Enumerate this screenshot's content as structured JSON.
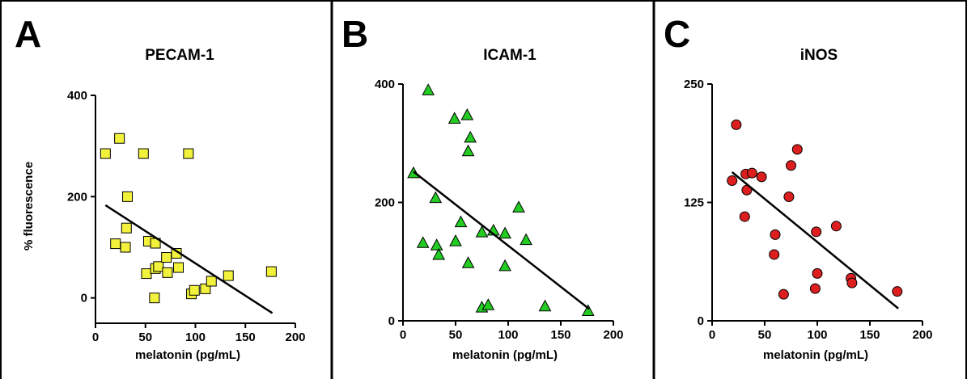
{
  "figure": {
    "panels": [
      {
        "letter": "A"
      },
      {
        "letter": "B"
      },
      {
        "letter": "C"
      }
    ]
  },
  "chart_data": [
    {
      "type": "scatter",
      "title": "PECAM-1",
      "xlabel": "melatonin (pg/mL)",
      "ylabel": "% fluorescence",
      "xlim": [
        0,
        200
      ],
      "ylim": [
        -50,
        400
      ],
      "xticks": [
        0,
        50,
        100,
        150,
        200
      ],
      "yticks": [
        0,
        200,
        400
      ],
      "marker": "square",
      "marker_color": "#f2f23c",
      "points": [
        {
          "x": 10,
          "y": 285
        },
        {
          "x": 24,
          "y": 315
        },
        {
          "x": 48,
          "y": 285
        },
        {
          "x": 93,
          "y": 285
        },
        {
          "x": 32,
          "y": 200
        },
        {
          "x": 31,
          "y": 138
        },
        {
          "x": 20,
          "y": 107
        },
        {
          "x": 30,
          "y": 100
        },
        {
          "x": 53,
          "y": 112
        },
        {
          "x": 60,
          "y": 108
        },
        {
          "x": 51,
          "y": 48
        },
        {
          "x": 60,
          "y": 58
        },
        {
          "x": 63,
          "y": 62
        },
        {
          "x": 71,
          "y": 80
        },
        {
          "x": 72,
          "y": 50
        },
        {
          "x": 81,
          "y": 88
        },
        {
          "x": 83,
          "y": 60
        },
        {
          "x": 59,
          "y": 0
        },
        {
          "x": 96,
          "y": 8
        },
        {
          "x": 99,
          "y": 15
        },
        {
          "x": 110,
          "y": 18
        },
        {
          "x": 116,
          "y": 33
        },
        {
          "x": 133,
          "y": 44
        },
        {
          "x": 176,
          "y": 52
        }
      ],
      "fit_line": {
        "x": [
          10,
          177
        ],
        "y": [
          183,
          -30
        ]
      }
    },
    {
      "type": "scatter",
      "title": "ICAM-1",
      "xlabel": "melatonin (pg/mL)",
      "ylabel": "",
      "xlim": [
        0,
        200
      ],
      "ylim": [
        0,
        400
      ],
      "xticks": [
        0,
        50,
        100,
        150,
        200
      ],
      "yticks": [
        0,
        200,
        400
      ],
      "marker": "triangle",
      "marker_color": "#22cc22",
      "points": [
        {
          "x": 10,
          "y": 250
        },
        {
          "x": 24,
          "y": 390
        },
        {
          "x": 49,
          "y": 342
        },
        {
          "x": 61,
          "y": 348
        },
        {
          "x": 64,
          "y": 310
        },
        {
          "x": 62,
          "y": 287
        },
        {
          "x": 31,
          "y": 208
        },
        {
          "x": 19,
          "y": 132
        },
        {
          "x": 32,
          "y": 128
        },
        {
          "x": 34,
          "y": 112
        },
        {
          "x": 50,
          "y": 135
        },
        {
          "x": 55,
          "y": 167
        },
        {
          "x": 62,
          "y": 98
        },
        {
          "x": 75,
          "y": 150
        },
        {
          "x": 86,
          "y": 153
        },
        {
          "x": 97,
          "y": 148
        },
        {
          "x": 97,
          "y": 93
        },
        {
          "x": 110,
          "y": 192
        },
        {
          "x": 117,
          "y": 137
        },
        {
          "x": 75,
          "y": 23
        },
        {
          "x": 81,
          "y": 27
        },
        {
          "x": 135,
          "y": 25
        },
        {
          "x": 176,
          "y": 17
        }
      ],
      "fit_line": {
        "x": [
          10,
          177
        ],
        "y": [
          252,
          20
        ]
      }
    },
    {
      "type": "scatter",
      "title": "iNOS",
      "xlabel": "melatonin (pg/mL)",
      "ylabel": "",
      "xlim": [
        0,
        200
      ],
      "ylim": [
        0,
        250
      ],
      "xticks": [
        0,
        50,
        100,
        150,
        200
      ],
      "yticks": [
        0,
        125,
        250
      ],
      "marker": "circle",
      "marker_color": "#dd1e1e",
      "points": [
        {
          "x": 23,
          "y": 207
        },
        {
          "x": 19,
          "y": 148
        },
        {
          "x": 32,
          "y": 155
        },
        {
          "x": 38,
          "y": 156
        },
        {
          "x": 33,
          "y": 138
        },
        {
          "x": 47,
          "y": 152
        },
        {
          "x": 81,
          "y": 181
        },
        {
          "x": 75,
          "y": 164
        },
        {
          "x": 73,
          "y": 131
        },
        {
          "x": 31,
          "y": 110
        },
        {
          "x": 60,
          "y": 91
        },
        {
          "x": 59,
          "y": 70
        },
        {
          "x": 99,
          "y": 94
        },
        {
          "x": 118,
          "y": 100
        },
        {
          "x": 100,
          "y": 50
        },
        {
          "x": 98,
          "y": 34
        },
        {
          "x": 68,
          "y": 28
        },
        {
          "x": 132,
          "y": 45
        },
        {
          "x": 133,
          "y": 40
        },
        {
          "x": 176,
          "y": 31
        }
      ],
      "fit_line": {
        "x": [
          19,
          177
        ],
        "y": [
          157,
          13
        ]
      }
    }
  ]
}
